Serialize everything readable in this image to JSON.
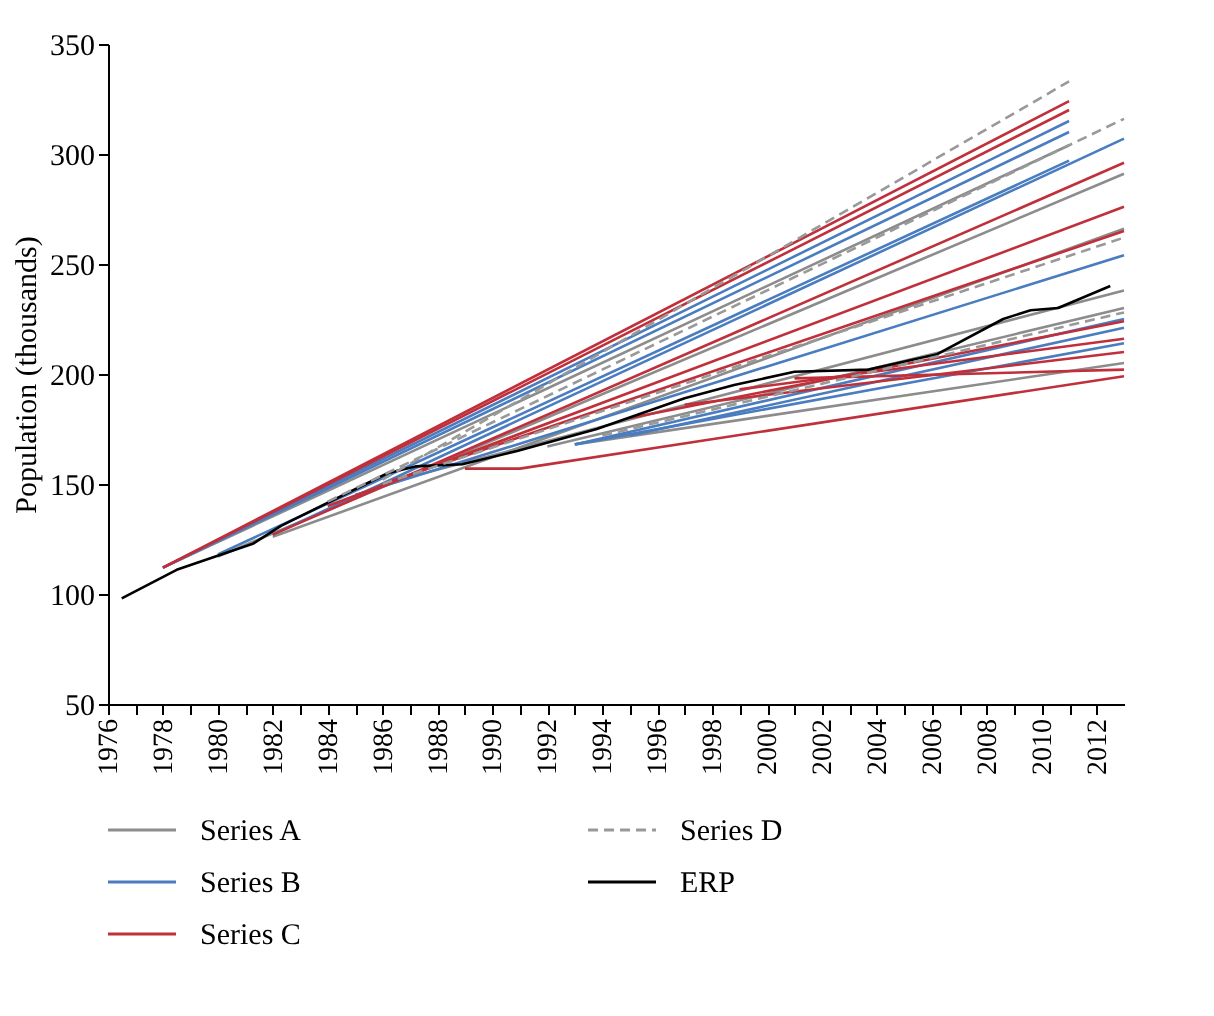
{
  "chart_data": {
    "type": "line",
    "ylabel": "Population (thousands)",
    "xlim": [
      1976,
      2013
    ],
    "ylim": [
      50,
      350
    ],
    "yticks": [
      50,
      100,
      150,
      200,
      250,
      300,
      350
    ],
    "xticks": [
      1976,
      {
        "value": 1977,
        "label": null
      },
      1978,
      {
        "value": 1979,
        "label": null
      },
      1980,
      {
        "value": 1981,
        "label": null
      },
      1982,
      {
        "value": 1983,
        "label": null
      },
      1984,
      {
        "value": 1985,
        "label": null
      },
      1986,
      {
        "value": 1987,
        "label": null
      },
      1988,
      {
        "value": 1989,
        "label": null
      },
      1990,
      {
        "value": 1991,
        "label": null
      },
      1992,
      {
        "value": 1993,
        "label": null
      },
      1994,
      {
        "value": 1995,
        "label": null
      },
      1996,
      {
        "value": 1997,
        "label": null
      },
      1998,
      {
        "value": 1999,
        "label": null
      },
      2000,
      {
        "value": 2001,
        "label": null
      },
      2002,
      {
        "value": 2003,
        "label": null
      },
      2004,
      {
        "value": 2005,
        "label": null
      },
      2006,
      {
        "value": 2007,
        "label": null
      },
      2008,
      {
        "value": 2009,
        "label": null
      },
      2010,
      {
        "value": 2011,
        "label": null
      },
      2012
    ],
    "grid": false,
    "legend": "bottom",
    "series": [
      {
        "name": "Series A",
        "color": "#8c8c8c",
        "line_style": "solid",
        "x": [
          1978,
          2011
        ],
        "values": [
          112,
          304
        ]
      },
      {
        "color": "#8c8c8c",
        "line_style": "solid",
        "x": [
          1980,
          2013
        ],
        "values": [
          117,
          291
        ]
      },
      {
        "color": "#8c8c8c",
        "line_style": "solid",
        "x": [
          1982,
          2013
        ],
        "values": [
          126,
          266
        ]
      },
      {
        "color": "#8c8c8c",
        "line_style": "solid",
        "x": [
          1986,
          2013
        ],
        "values": [
          150,
          238
        ]
      },
      {
        "color": "#8c8c8c",
        "line_style": "solid",
        "x": [
          1993,
          2013
        ],
        "values": [
          168,
          205
        ]
      },
      {
        "color": "#8c8c8c",
        "line_style": "solid",
        "x": [
          1992,
          2013
        ],
        "values": [
          167,
          230
        ]
      },
      {
        "name": "Series B",
        "color": "#4a7cc0",
        "line_style": "solid",
        "x": [
          1978,
          2011
        ],
        "values": [
          112,
          315
        ]
      },
      {
        "color": "#4a7cc0",
        "line_style": "solid",
        "x": [
          1978,
          2011
        ],
        "values": [
          112,
          310
        ]
      },
      {
        "color": "#4a7cc0",
        "line_style": "solid",
        "x": [
          1980,
          2011
        ],
        "values": [
          118,
          297
        ]
      },
      {
        "color": "#4a7cc0",
        "line_style": "solid",
        "x": [
          1982,
          2013
        ],
        "values": [
          127,
          307
        ]
      },
      {
        "color": "#4a7cc0",
        "line_style": "solid",
        "x": [
          1985,
          2013
        ],
        "values": [
          145,
          254
        ]
      },
      {
        "color": "#4a7cc0",
        "line_style": "solid",
        "x": [
          1993,
          2013
        ],
        "values": [
          168,
          225
        ]
      },
      {
        "color": "#4a7cc0",
        "line_style": "solid",
        "x": [
          1995,
          2013
        ],
        "values": [
          172,
          221
        ]
      },
      {
        "color": "#4a7cc0",
        "line_style": "solid",
        "x": [
          1993,
          2013
        ],
        "values": [
          168,
          214
        ]
      },
      {
        "name": "Series C",
        "color": "#c0303a",
        "line_style": "solid",
        "x": [
          1978,
          2011
        ],
        "values": [
          112,
          324
        ]
      },
      {
        "color": "#c0303a",
        "line_style": "solid",
        "x": [
          1978,
          2011
        ],
        "values": [
          112,
          320
        ]
      },
      {
        "color": "#c0303a",
        "line_style": "solid",
        "x": [
          1982,
          2013
        ],
        "values": [
          127,
          296
        ]
      },
      {
        "color": "#c0303a",
        "line_style": "solid",
        "x": [
          1984,
          2013
        ],
        "values": [
          140,
          276
        ]
      },
      {
        "color": "#c0303a",
        "line_style": "solid",
        "x": [
          1986,
          2013
        ],
        "values": [
          150,
          265
        ]
      },
      {
        "color": "#c0303a",
        "line_style": "solid",
        "x": [
          1989,
          1991,
          2013
        ],
        "values": [
          157,
          157,
          199
        ]
      },
      {
        "color": "#c0303a",
        "line_style": "solid",
        "x": [
          1997,
          2013
        ],
        "values": [
          186,
          210
        ]
      },
      {
        "color": "#c0303a",
        "line_style": "solid",
        "x": [
          1999,
          2013
        ],
        "values": [
          193,
          216
        ]
      },
      {
        "color": "#c0303a",
        "line_style": "solid",
        "x": [
          2001,
          2013
        ],
        "values": [
          198,
          202
        ]
      },
      {
        "color": "#c0303a",
        "line_style": "solid",
        "x": [
          1995,
          2013
        ],
        "values": [
          180,
          224
        ]
      },
      {
        "name": "Series D",
        "color": "#999999",
        "line_style": "dashed",
        "x": [
          1986,
          2011
        ],
        "values": [
          152,
          333
        ]
      },
      {
        "color": "#999999",
        "line_style": "dashed",
        "x": [
          1984,
          2013
        ],
        "values": [
          142,
          316
        ]
      },
      {
        "color": "#999999",
        "line_style": "dashed",
        "x": [
          1986,
          2013
        ],
        "values": [
          150,
          262
        ]
      },
      {
        "color": "#999999",
        "line_style": "dashed",
        "x": [
          1994,
          2013
        ],
        "values": [
          172,
          228
        ]
      },
      {
        "name": "ERP",
        "color": "#000000",
        "line_style": "solid",
        "x": [
          1976.5,
          1978.5,
          1981.3,
          1982.3,
          1986.2,
          1987.2,
          1988.9,
          1990.9,
          1993.8,
          1997,
          1998.8,
          2001,
          2003.7,
          2006.2,
          2008.6,
          2009.6,
          2010.6,
          2012.5
        ],
        "values": [
          98,
          111,
          123,
          131,
          155,
          158,
          159,
          165,
          175,
          189,
          195,
          201,
          202,
          209,
          225,
          229,
          230,
          240
        ]
      }
    ]
  }
}
